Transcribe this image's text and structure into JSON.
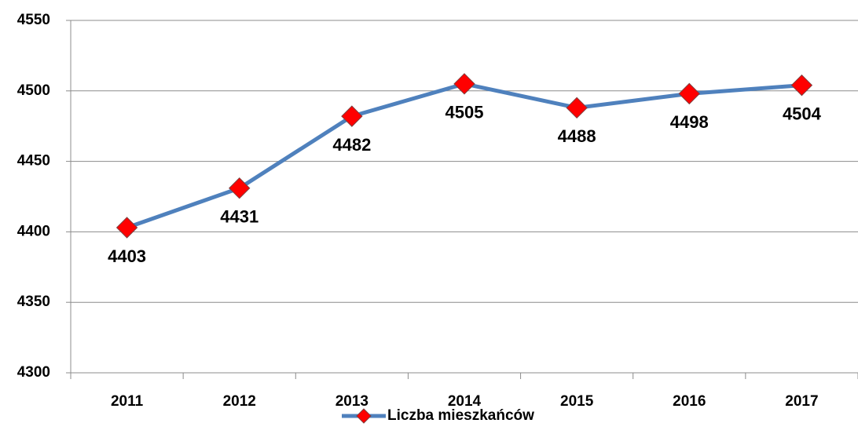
{
  "chart_data": {
    "type": "line",
    "categories": [
      "2011",
      "2012",
      "2013",
      "2014",
      "2015",
      "2016",
      "2017"
    ],
    "series": [
      {
        "name": "Liczba mieszkańców",
        "color": "#4f81bd",
        "marker_color": "#ff0000",
        "values": [
          4403,
          4431,
          4482,
          4505,
          4488,
          4498,
          4504
        ]
      }
    ],
    "ylim": [
      4300,
      4550
    ],
    "yticks": [
      4300,
      4350,
      4400,
      4450,
      4500,
      4550
    ],
    "grid": true,
    "legend": "bottom"
  }
}
